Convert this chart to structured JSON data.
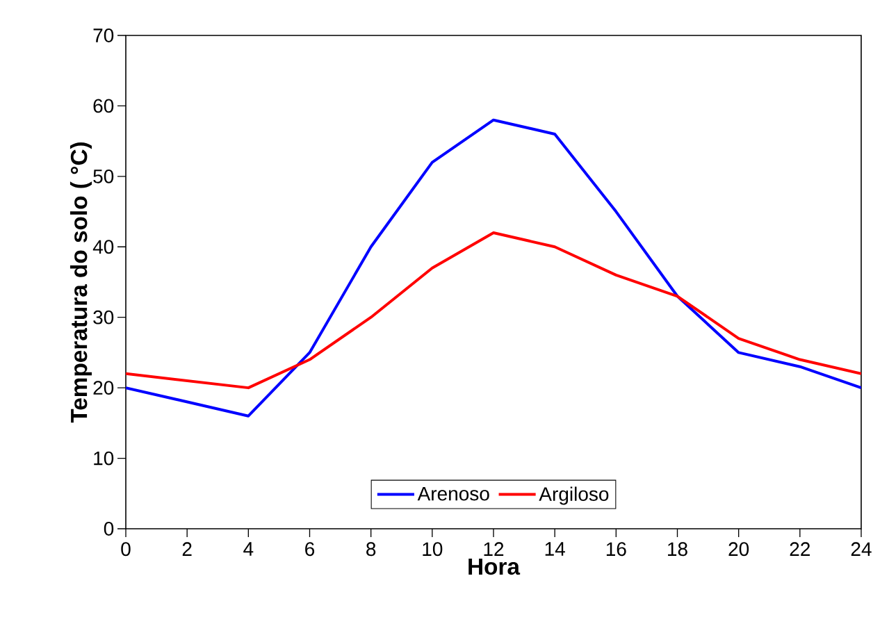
{
  "chart_data": {
    "type": "line",
    "xlabel": "Hora",
    "ylabel": "Temperatura do solo ( °C)",
    "x": [
      0,
      4,
      6,
      8,
      10,
      12,
      14,
      16,
      18,
      20,
      22,
      24
    ],
    "series": [
      {
        "name": "Arenoso",
        "color": "#0000ff",
        "values": [
          20,
          16,
          25,
          40,
          52,
          58,
          56,
          45,
          33,
          25,
          23,
          20
        ]
      },
      {
        "name": "Argiloso",
        "color": "#ff0000",
        "values": [
          22,
          20,
          24,
          30,
          37,
          42,
          40,
          36,
          33,
          27,
          24,
          22
        ]
      }
    ],
    "xlim": [
      0,
      24
    ],
    "ylim": [
      0,
      70
    ],
    "xticks": [
      0,
      2,
      4,
      6,
      8,
      10,
      12,
      14,
      16,
      18,
      20,
      22,
      24
    ],
    "yticks": [
      0,
      10,
      20,
      30,
      40,
      50,
      60,
      70
    ],
    "grid": false,
    "legend": "bottom",
    "marker": "none",
    "line_style": "solid"
  }
}
